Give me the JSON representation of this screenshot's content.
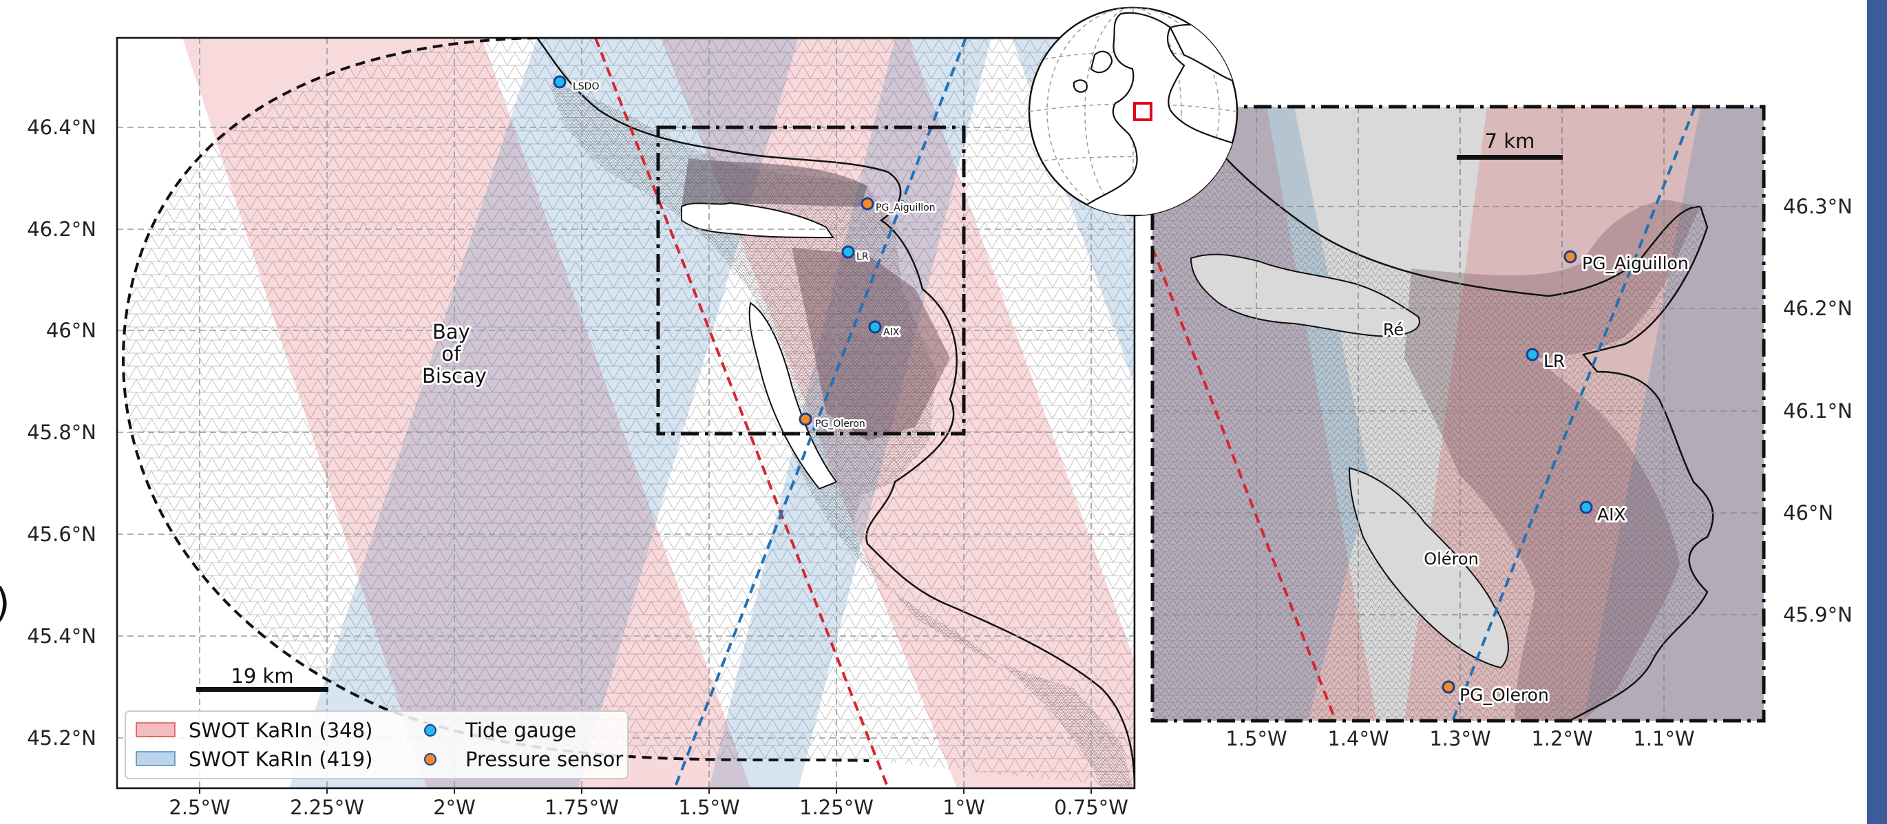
{
  "figure": {
    "panel_fragment": ")",
    "colors": {
      "swot_348": "#d6262f",
      "swot_419": "#2271b5",
      "tide_gauge": "#22b8f0",
      "pressure_sensor": "#f28b2c",
      "sea_background": "#ffffff",
      "land": "#d9d9d9",
      "frame_blue": "#3b5b9a"
    }
  },
  "main_map": {
    "x_ticks": [
      "2.5°W",
      "2.25°W",
      "2°W",
      "1.75°W",
      "1.5°W",
      "1.25°W",
      "1°W",
      "0.75°W"
    ],
    "y_ticks": [
      "46.4°N",
      "46.2°N",
      "46°N",
      "45.8°N",
      "45.6°N",
      "45.4°N",
      "45.2°N"
    ],
    "place_label": [
      "Bay",
      "of",
      "Biscay"
    ],
    "scale_bar": "19 km",
    "stations": {
      "lsdo": "LSDO",
      "aiguillon": "PG_Aiguillon",
      "lr": "LR",
      "aix": "AIX",
      "oleron": "PG_Oleron"
    },
    "legend": {
      "swot_348": "SWOT KaRIn (348)",
      "swot_419": "SWOT KaRIn (419)",
      "tide_gauge": "Tide gauge",
      "pressure_sensor": "Pressure sensor"
    }
  },
  "inset_map": {
    "x_ticks": [
      "1.5°W",
      "1.4°W",
      "1.3°W",
      "1.2°W",
      "1.1°W"
    ],
    "y_ticks": [
      "46.3°N",
      "46.2°N",
      "46.1°N",
      "46°N",
      "45.9°N"
    ],
    "scale_bar": "7 km",
    "island_re": "Ré",
    "island_oleron": "Oléron",
    "stations": {
      "aiguillon": "PG_Aiguillon",
      "lr": "LR",
      "aix": "AIX",
      "oleron": "PG_Oleron"
    }
  }
}
